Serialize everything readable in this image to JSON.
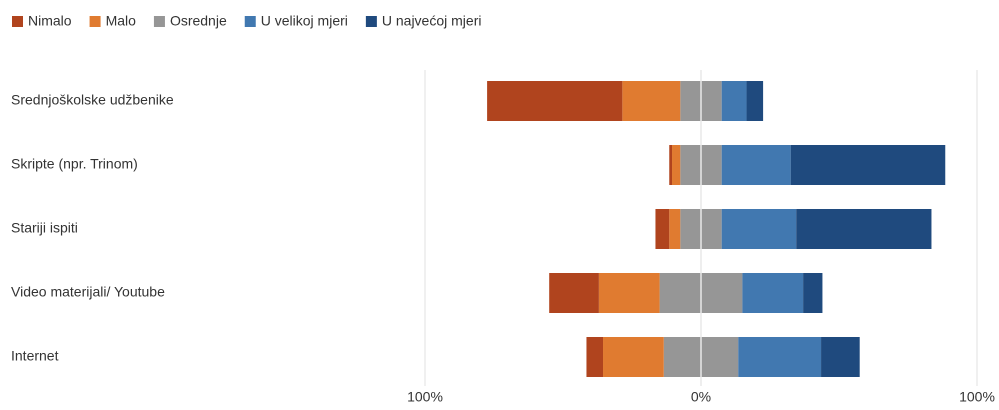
{
  "chart_data": {
    "type": "diverging-bar",
    "categories": [
      "Srednjoškolske udžbenike",
      "Skripte (npr. Trinom)",
      "Stariji ispiti",
      "Video materijali/ Youtube",
      "Internet"
    ],
    "series": [
      {
        "name": "Nimalo",
        "color": "#b0441e",
        "values": [
          49,
          1,
          5,
          18,
          6
        ]
      },
      {
        "name": "Malo",
        "color": "#e07b30",
        "values": [
          21,
          3,
          4,
          22,
          22
        ]
      },
      {
        "name": "Osrednje",
        "color": "#969696",
        "values": [
          15,
          15,
          15,
          30,
          27
        ]
      },
      {
        "name": "U velikoj mjeri",
        "color": "#4178b0",
        "values": [
          9,
          25,
          27,
          22,
          30
        ]
      },
      {
        "name": "U najvećoj mjeri",
        "color": "#1f4a7e",
        "values": [
          6,
          56,
          49,
          7,
          14
        ]
      }
    ],
    "xlim": [
      -100,
      100
    ],
    "xticks": [
      {
        "value": -100,
        "label": "100%"
      },
      {
        "value": 0,
        "label": "0%"
      },
      {
        "value": 100,
        "label": "100%"
      }
    ],
    "grid": true,
    "legend": "top"
  }
}
